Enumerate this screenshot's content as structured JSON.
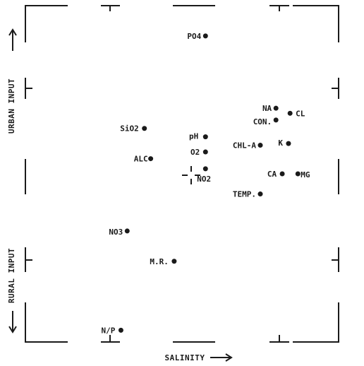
{
  "chart_data": {
    "type": "scatter",
    "title": "",
    "xlabel": "SALINITY",
    "ylabel_top": "URBAN INPUT",
    "ylabel_bottom": "RURAL INPUT",
    "xlim": [
      0,
      100
    ],
    "ylim": [
      0,
      100
    ],
    "grid": false,
    "points": [
      {
        "label": "PO4",
        "x": 57.5,
        "y": 91.0
      },
      {
        "label": "NA",
        "x": 80.0,
        "y": 69.5
      },
      {
        "label": "CL",
        "x": 84.5,
        "y": 68.0
      },
      {
        "label": "CON.",
        "x": 80.0,
        "y": 66.0
      },
      {
        "label": "SiO2",
        "x": 38.0,
        "y": 63.5
      },
      {
        "label": "pH",
        "x": 57.5,
        "y": 61.0
      },
      {
        "label": "K",
        "x": 84.0,
        "y": 59.0
      },
      {
        "label": "CHL-A",
        "x": 75.0,
        "y": 58.5
      },
      {
        "label": "O2",
        "x": 57.5,
        "y": 56.5
      },
      {
        "label": "ALC",
        "x": 40.0,
        "y": 54.5
      },
      {
        "label": "NO2",
        "x": 57.5,
        "y": 51.5
      },
      {
        "label": "CA",
        "x": 82.0,
        "y": 50.0
      },
      {
        "label": "MG",
        "x": 87.0,
        "y": 50.0
      },
      {
        "label": "TEMP.",
        "x": 75.0,
        "y": 44.0
      },
      {
        "label": "NO3",
        "x": 32.5,
        "y": 33.0
      },
      {
        "label": "M.R.",
        "x": 47.5,
        "y": 24.0
      },
      {
        "label": "N/P",
        "x": 30.5,
        "y": 3.5
      }
    ]
  }
}
